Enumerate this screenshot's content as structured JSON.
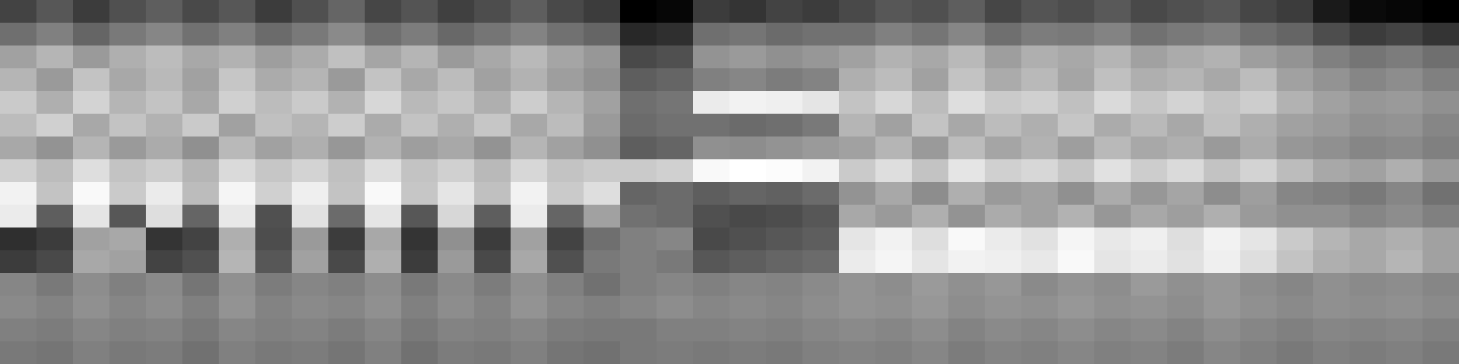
{
  "chart_data": {
    "type": "heatmap",
    "tick_labels": false,
    "cells": [
      [
        32,
        38,
        30,
        36,
        40,
        34,
        38,
        30,
        36,
        42,
        33,
        37,
        31,
        35,
        40,
        34,
        30,
        12,
        14,
        30,
        28,
        32,
        30,
        34,
        38,
        36,
        40,
        33,
        37,
        35,
        39,
        34,
        36,
        38,
        33,
        30,
        20,
        15,
        14,
        12
      ],
      [
        45,
        50,
        42,
        48,
        52,
        46,
        50,
        44,
        48,
        53,
        45,
        49,
        43,
        47,
        51,
        46,
        42,
        24,
        26,
        45,
        47,
        44,
        46,
        46,
        50,
        47,
        52,
        45,
        49,
        48,
        51,
        46,
        48,
        50,
        45,
        42,
        35,
        30,
        32,
        28
      ],
      [
        60,
        66,
        58,
        64,
        68,
        62,
        65,
        59,
        63,
        69,
        61,
        66,
        58,
        62,
        67,
        61,
        57,
        34,
        36,
        56,
        58,
        55,
        57,
        60,
        65,
        62,
        67,
        59,
        64,
        62,
        66,
        60,
        63,
        65,
        59,
        56,
        50,
        47,
        49,
        45
      ],
      [
        66,
        58,
        70,
        62,
        67,
        60,
        71,
        63,
        66,
        58,
        70,
        62,
        68,
        60,
        65,
        59,
        55,
        40,
        42,
        50,
        52,
        49,
        51,
        64,
        68,
        60,
        70,
        63,
        67,
        61,
        69,
        64,
        66,
        62,
        68,
        60,
        56,
        52,
        54,
        50
      ],
      [
        72,
        64,
        75,
        66,
        70,
        62,
        74,
        68,
        72,
        65,
        76,
        67,
        71,
        64,
        73,
        66,
        60,
        45,
        47,
        82,
        84,
        83,
        80,
        70,
        76,
        68,
        78,
        72,
        74,
        69,
        77,
        71,
        75,
        70,
        73,
        65,
        60,
        57,
        58,
        55
      ],
      [
        68,
        74,
        62,
        70,
        65,
        72,
        60,
        69,
        66,
        73,
        63,
        70,
        64,
        71,
        62,
        68,
        58,
        44,
        46,
        46,
        44,
        45,
        48,
        66,
        60,
        70,
        62,
        68,
        64,
        71,
        63,
        67,
        62,
        69,
        64,
        60,
        58,
        55,
        56,
        52
      ],
      [
        62,
        56,
        66,
        58,
        63,
        55,
        67,
        60,
        64,
        57,
        65,
        59,
        62,
        56,
        66,
        60,
        55,
        40,
        42,
        55,
        54,
        56,
        58,
        60,
        66,
        58,
        68,
        61,
        65,
        59,
        67,
        62,
        64,
        58,
        63,
        57,
        55,
        52,
        53,
        50
      ],
      [
        74,
        68,
        78,
        70,
        73,
        66,
        77,
        71,
        75,
        69,
        78,
        70,
        74,
        67,
        76,
        70,
        72,
        72,
        74,
        86,
        88,
        87,
        84,
        72,
        78,
        70,
        80,
        74,
        76,
        71,
        79,
        73,
        77,
        70,
        75,
        68,
        62,
        60,
        64,
        58
      ],
      [
        84,
        70,
        86,
        72,
        82,
        68,
        85,
        74,
        83,
        70,
        86,
        71,
        80,
        69,
        84,
        72,
        78,
        42,
        44,
        40,
        42,
        41,
        44,
        56,
        62,
        54,
        64,
        58,
        60,
        55,
        63,
        57,
        61,
        54,
        59,
        52,
        50,
        48,
        52,
        46
      ],
      [
        82,
        40,
        80,
        38,
        78,
        42,
        81,
        36,
        79,
        44,
        80,
        38,
        76,
        40,
        82,
        42,
        60,
        46,
        44,
        36,
        34,
        35,
        38,
        62,
        58,
        64,
        56,
        63,
        60,
        65,
        57,
        62,
        59,
        64,
        58,
        55,
        55,
        52,
        54,
        50
      ],
      [
        26,
        30,
        60,
        62,
        28,
        32,
        64,
        35,
        58,
        30,
        62,
        28,
        55,
        30,
        60,
        32,
        45,
        50,
        52,
        34,
        36,
        38,
        40,
        80,
        84,
        78,
        86,
        82,
        79,
        85,
        81,
        83,
        78,
        84,
        80,
        72,
        66,
        62,
        64,
        60
      ],
      [
        30,
        34,
        62,
        60,
        32,
        36,
        66,
        38,
        60,
        34,
        64,
        30,
        58,
        34,
        62,
        36,
        48,
        50,
        48,
        38,
        40,
        42,
        44,
        82,
        85,
        80,
        84,
        83,
        81,
        86,
        80,
        82,
        79,
        83,
        78,
        70,
        64,
        62,
        66,
        60
      ],
      [
        52,
        48,
        54,
        50,
        53,
        47,
        55,
        49,
        52,
        50,
        54,
        48,
        53,
        49,
        55,
        50,
        46,
        50,
        52,
        50,
        52,
        51,
        53,
        56,
        54,
        58,
        55,
        57,
        53,
        56,
        54,
        58,
        55,
        57,
        54,
        52,
        55,
        53,
        54,
        52
      ],
      [
        53,
        51,
        55,
        52,
        54,
        50,
        56,
        51,
        53,
        52,
        55,
        50,
        54,
        51,
        56,
        52,
        50,
        52,
        54,
        52,
        53,
        52,
        54,
        56,
        55,
        57,
        54,
        56,
        55,
        57,
        55,
        56,
        54,
        57,
        55,
        53,
        55,
        54,
        55,
        53
      ],
      [
        50,
        49,
        52,
        50,
        51,
        48,
        52,
        50,
        51,
        49,
        52,
        48,
        51,
        50,
        52,
        49,
        48,
        48,
        50,
        50,
        51,
        50,
        52,
        53,
        52,
        54,
        51,
        53,
        52,
        54,
        52,
        53,
        51,
        54,
        52,
        50,
        52,
        51,
        52,
        50
      ],
      [
        48,
        47,
        50,
        48,
        49,
        46,
        50,
        48,
        49,
        47,
        50,
        46,
        49,
        48,
        50,
        47,
        46,
        48,
        49,
        48,
        49,
        48,
        50,
        51,
        50,
        52,
        49,
        51,
        50,
        52,
        50,
        51,
        49,
        52,
        50,
        48,
        50,
        49,
        50,
        48
      ]
    ]
  }
}
